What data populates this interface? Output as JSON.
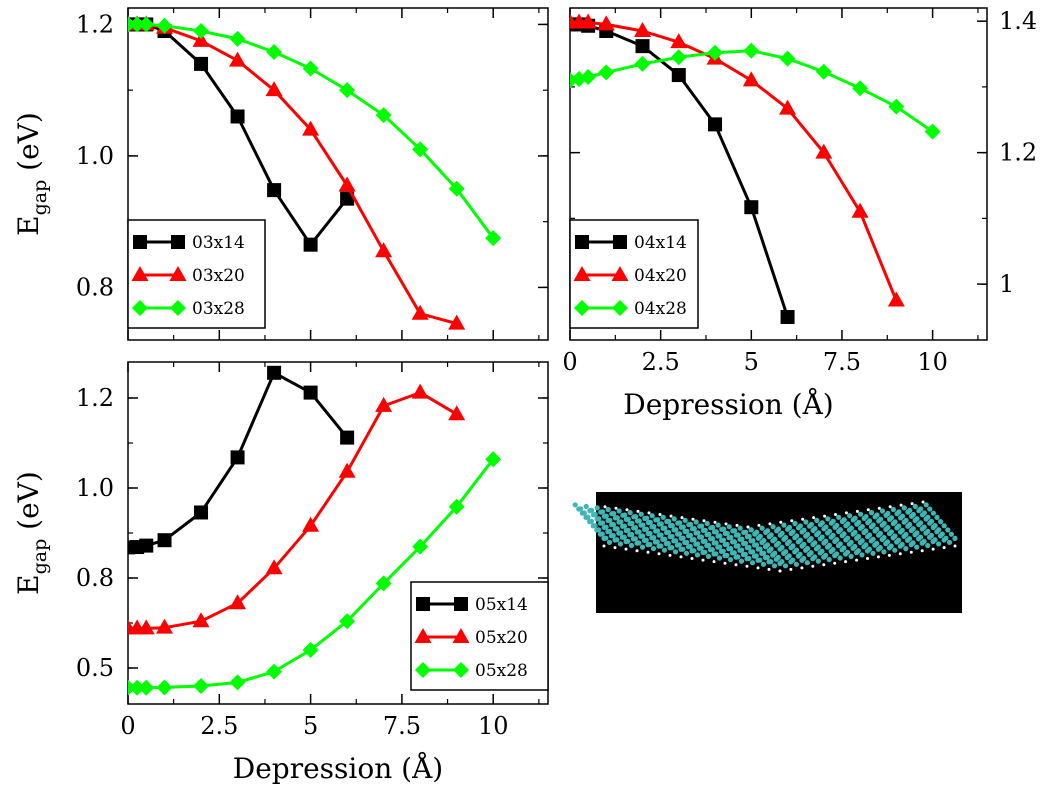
{
  "chart_data": [
    {
      "type": "line",
      "ylabel_main": "E",
      "ylabel_sub": "gap",
      "ylabel_unit": " (eV)",
      "xlim": [
        0,
        11.5
      ],
      "ylim": [
        0.72,
        1.225
      ],
      "yticks": [
        0.8,
        1.0,
        1.2
      ],
      "ytick_labels": [
        "0.8",
        "1.0",
        "1.2"
      ],
      "xticks": [
        0,
        2.5,
        5,
        7.5,
        10
      ],
      "series": [
        {
          "name": "03x14",
          "color": "#000000",
          "marker": "square",
          "x": [
            0,
            0.25,
            0.5,
            1,
            2,
            3,
            4,
            5,
            6
          ],
          "y": [
            1.2,
            1.2,
            1.2,
            1.19,
            1.14,
            1.06,
            0.948,
            0.865,
            0.935
          ]
        },
        {
          "name": "03x20",
          "color": "#ff0000",
          "marker": "triangle",
          "x": [
            0,
            0.25,
            0.5,
            1,
            2,
            3,
            4,
            5,
            6,
            7,
            8,
            9
          ],
          "y": [
            1.2,
            1.2,
            1.2,
            1.195,
            1.175,
            1.145,
            1.1,
            1.04,
            0.955,
            0.855,
            0.76,
            0.745
          ]
        },
        {
          "name": "03x28",
          "color": "#00ff00",
          "marker": "diamond",
          "x": [
            0,
            0.25,
            0.5,
            1,
            2,
            3,
            4,
            5,
            6,
            7,
            8,
            9,
            10
          ],
          "y": [
            1.2,
            1.2,
            1.2,
            1.198,
            1.19,
            1.178,
            1.158,
            1.133,
            1.1,
            1.062,
            1.01,
            0.95,
            0.875
          ]
        }
      ]
    },
    {
      "type": "line",
      "xlabel": "Depression (Å)",
      "xlim": [
        0,
        11.5
      ],
      "ylim": [
        0.915,
        1.42
      ],
      "yticks": [
        1.0,
        1.2,
        1.4
      ],
      "ytick_labels": [
        "1",
        "1.2",
        "1.4"
      ],
      "xticks": [
        0,
        2.5,
        5,
        7.5,
        10
      ],
      "xtick_labels": [
        "0",
        "2.5",
        "5",
        "7.5",
        "10"
      ],
      "series": [
        {
          "name": "04x14",
          "color": "#000000",
          "marker": "square",
          "x": [
            0,
            0.25,
            0.5,
            1,
            2,
            3,
            4,
            5,
            6
          ],
          "y": [
            1.395,
            1.395,
            1.393,
            1.385,
            1.362,
            1.318,
            1.243,
            1.117,
            0.95
          ]
        },
        {
          "name": "04x20",
          "color": "#ff0000",
          "marker": "triangle",
          "x": [
            0,
            0.25,
            0.5,
            1,
            2,
            3,
            4,
            5,
            6,
            7,
            8,
            9
          ],
          "y": [
            1.398,
            1.398,
            1.398,
            1.395,
            1.385,
            1.368,
            1.343,
            1.31,
            1.267,
            1.2,
            1.11,
            0.975
          ]
        },
        {
          "name": "04x28",
          "color": "#00ff00",
          "marker": "diamond",
          "x": [
            0,
            0.25,
            0.5,
            1,
            2,
            3,
            4,
            5,
            6,
            7,
            8,
            9,
            10
          ],
          "y": [
            1.31,
            1.312,
            1.315,
            1.322,
            1.335,
            1.345,
            1.352,
            1.355,
            1.343,
            1.323,
            1.298,
            1.27,
            1.232
          ]
        }
      ]
    },
    {
      "type": "line",
      "ylabel_main": "E",
      "ylabel_sub": "gap",
      "ylabel_unit": " (eV)",
      "xlabel": "Depression (Å)",
      "xlim": [
        0,
        11.5
      ],
      "ylim": [
        0.4,
        1.35
      ],
      "yticks": [
        0.5,
        0.8,
        1.0,
        1.2
      ],
      "yticks_pos": [
        0.5,
        0.75,
        1.0,
        1.25
      ],
      "ytick_labels": [
        "0.5",
        "0.8",
        "1.0",
        "1.2"
      ],
      "xticks": [
        0,
        2.5,
        5,
        7.5,
        10
      ],
      "xtick_labels": [
        "0",
        "2.5",
        "5",
        "7.5",
        "10"
      ],
      "series": [
        {
          "name": "05x14",
          "color": "#000000",
          "marker": "square",
          "x": [
            0,
            0.25,
            0.5,
            1,
            2,
            3,
            4,
            5,
            6
          ],
          "y": [
            0.835,
            0.836,
            0.84,
            0.855,
            0.932,
            1.085,
            1.32,
            1.265,
            1.14
          ]
        },
        {
          "name": "05x20",
          "color": "#ff0000",
          "marker": "triangle",
          "x": [
            0,
            0.25,
            0.5,
            1,
            2,
            3,
            4,
            5,
            6,
            7,
            8,
            9
          ],
          "y": [
            0.61,
            0.61,
            0.61,
            0.612,
            0.63,
            0.68,
            0.777,
            0.895,
            1.045,
            1.228,
            1.265,
            1.205
          ]
        },
        {
          "name": "05x28",
          "color": "#00ff00",
          "marker": "diamond",
          "x": [
            0,
            0.25,
            0.5,
            1,
            2,
            3,
            4,
            5,
            6,
            7,
            8,
            9,
            10
          ],
          "y": [
            0.445,
            0.445,
            0.445,
            0.446,
            0.45,
            0.46,
            0.49,
            0.55,
            0.63,
            0.735,
            0.837,
            0.948,
            1.08
          ]
        }
      ]
    }
  ],
  "inset": {
    "kind": "molecular-structure",
    "background": "#000000",
    "atom_color": "#3fb6b6"
  }
}
